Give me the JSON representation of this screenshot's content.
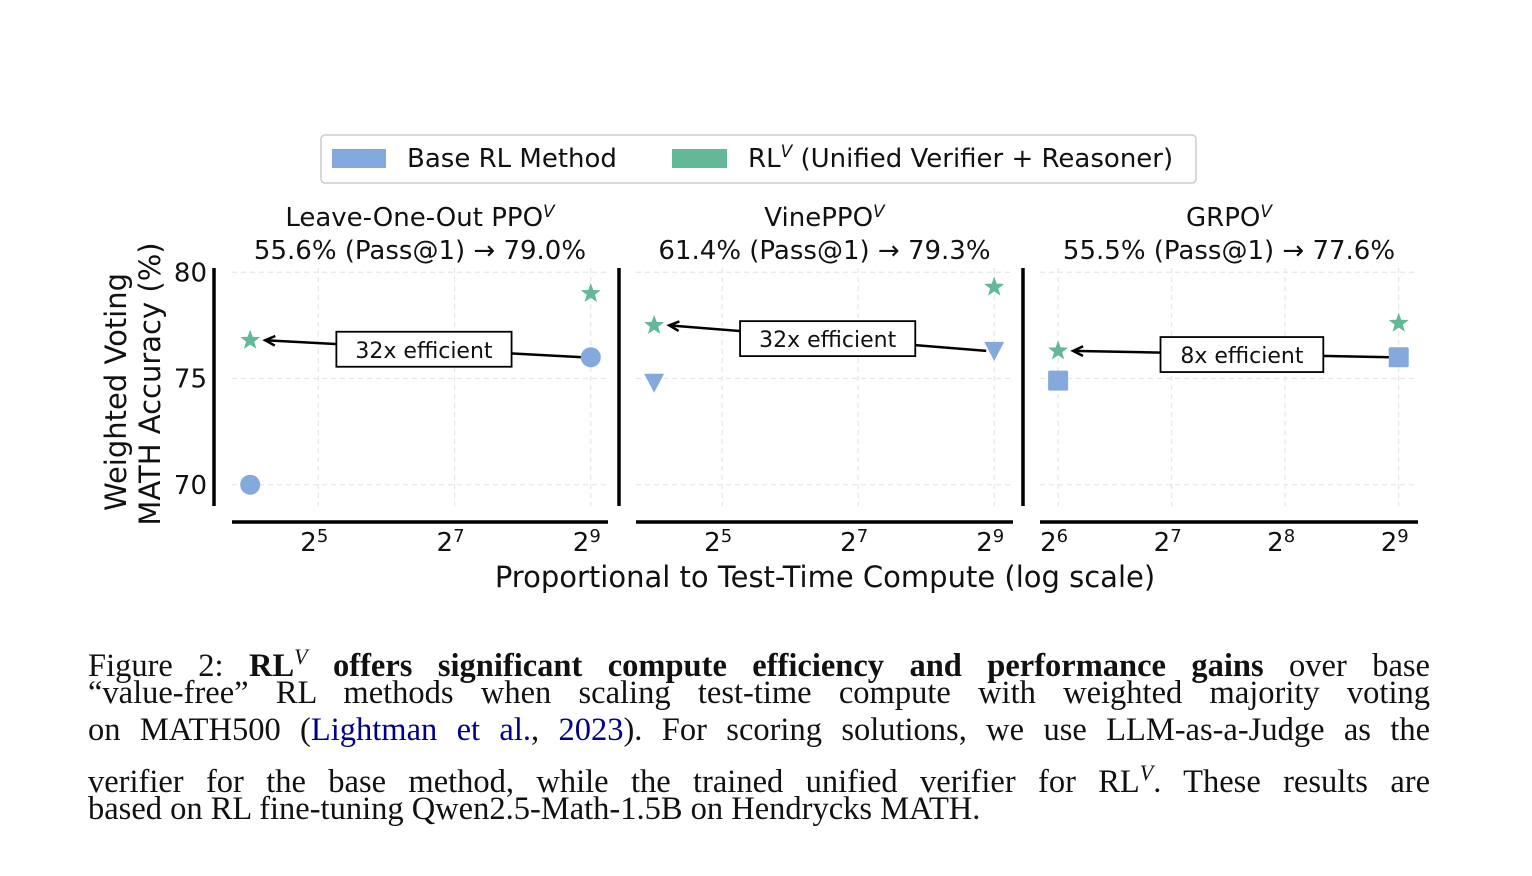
{
  "legend": {
    "items": [
      {
        "label": "Base RL Method",
        "color": "#84a9dc"
      },
      {
        "label": "RL",
        "sup": "V",
        "rest": " (Unified Verifier + Reasoner)",
        "color": "#62b897"
      }
    ]
  },
  "ylabel": [
    "Weighted Voting",
    "MATH Accuracy (%)"
  ],
  "xlabel": "Proportional to Test-Time Compute (log scale)",
  "chart_data": [
    {
      "type": "scatter",
      "title": "Leave-One-Out PPO",
      "title_sup": "V",
      "subtitle": "55.6% (Pass@1) → 79.0%",
      "x_scale": "log2",
      "xlim": [
        13.3,
        610
      ],
      "x_ticks": [
        32,
        128,
        512
      ],
      "x_tick_labels": [
        [
          "2",
          "5"
        ],
        [
          "2",
          "7"
        ],
        [
          "2",
          "9"
        ]
      ],
      "ylim": [
        69,
        80.2
      ],
      "y_ticks": [
        70,
        75,
        80
      ],
      "grid": true,
      "marker": "circle",
      "series": [
        {
          "name": "Base RL Method",
          "x": [
            16,
            512
          ],
          "y": [
            70.0,
            76.0
          ]
        },
        {
          "name": "RLV (Unified Verifier + Reasoner)",
          "x": [
            16,
            512
          ],
          "y": [
            76.8,
            79.0
          ]
        }
      ],
      "annotation": {
        "text": "32x efficient",
        "from": [
          512,
          76.0
        ],
        "to": [
          16,
          76.8
        ]
      }
    },
    {
      "type": "scatter",
      "title": "VinePPO",
      "title_sup": "V",
      "subtitle": "61.4% (Pass@1) → 79.3%",
      "x_scale": "log2",
      "xlim": [
        13.3,
        620
      ],
      "x_ticks": [
        32,
        128,
        512
      ],
      "x_tick_labels": [
        [
          "2",
          "5"
        ],
        [
          "2",
          "7"
        ],
        [
          "2",
          "9"
        ]
      ],
      "ylim": [
        69,
        80.2
      ],
      "y_ticks": [
        70,
        75,
        80
      ],
      "grid": true,
      "marker": "triangle-down",
      "series": [
        {
          "name": "Base RL Method",
          "x": [
            16,
            512
          ],
          "y": [
            74.8,
            76.3
          ]
        },
        {
          "name": "RLV (Unified Verifier + Reasoner)",
          "x": [
            16,
            512
          ],
          "y": [
            77.5,
            79.3
          ]
        }
      ],
      "annotation": {
        "text": "32x efficient",
        "from": [
          512,
          76.3
        ],
        "to": [
          16,
          77.5
        ]
      }
    },
    {
      "type": "scatter",
      "title": "GRPO",
      "title_sup": "V",
      "subtitle": "55.5% (Pass@1) → 77.6%",
      "x_scale": "log2",
      "xlim": [
        57.3,
        576
      ],
      "x_ticks": [
        64,
        128,
        256,
        512
      ],
      "x_tick_labels": [
        [
          "2",
          "6"
        ],
        [
          "2",
          "7"
        ],
        [
          "2",
          "8"
        ],
        [
          "2",
          "9"
        ]
      ],
      "ylim": [
        69,
        80.2
      ],
      "y_ticks": [
        70,
        75,
        80
      ],
      "grid": true,
      "marker": "square",
      "series": [
        {
          "name": "Base RL Method",
          "x": [
            64,
            512
          ],
          "y": [
            74.9,
            76.0
          ]
        },
        {
          "name": "RLV (Unified Verifier + Reasoner)",
          "x": [
            64,
            512
          ],
          "y": [
            76.3,
            77.6
          ]
        }
      ],
      "annotation": {
        "text": "8x efficient",
        "from": [
          512,
          76.0
        ],
        "to": [
          64,
          76.3
        ]
      }
    }
  ],
  "caption": {
    "lines": [
      [
        {
          "t": "Figure 2:  ",
          "s": ""
        },
        {
          "t": "RL",
          "s": "b"
        },
        {
          "t": "V",
          "s": "sup"
        },
        {
          "t": " offers significant compute efficiency and performance gains",
          "s": "b"
        },
        {
          "t": " over base",
          "s": ""
        }
      ],
      [
        {
          "t": "“value-free” RL methods when scaling test-time compute with weighted majority voting",
          "s": ""
        }
      ],
      [
        {
          "t": "on MATH500 (",
          "s": ""
        },
        {
          "t": "Lightman et al.",
          "s": "link"
        },
        {
          "t": ", ",
          "s": ""
        },
        {
          "t": "2023",
          "s": "link"
        },
        {
          "t": "). For scoring solutions, we use LLM-as-a-Judge as the",
          "s": ""
        }
      ],
      [
        {
          "t": "verifier for the base method, while the trained unified verifier for RL",
          "s": ""
        },
        {
          "t": "V",
          "s": "sup"
        },
        {
          "t": ". These results are",
          "s": ""
        }
      ],
      [
        {
          "t": "based on RL fine-tuning Qwen2.5-Math-1.5B on Hendrycks MATH.",
          "s": ""
        }
      ]
    ]
  }
}
